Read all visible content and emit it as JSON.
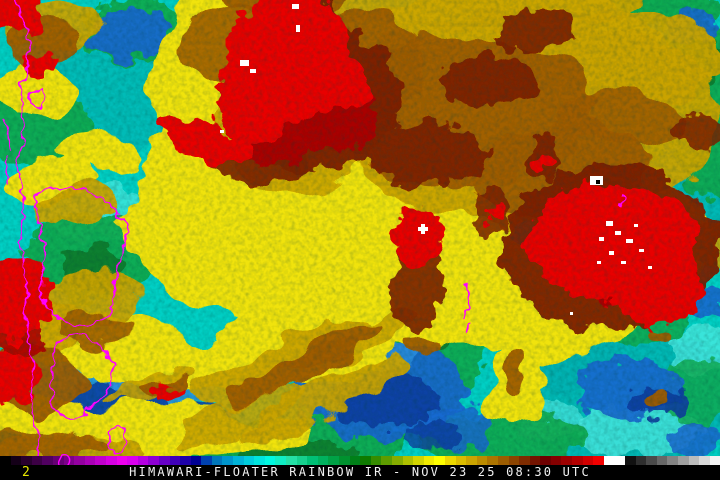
{
  "caption": {
    "channel": "2",
    "text": "HIMAWARI-FLOATER RAINBOW IR - NOV 23 25 08:30 UTC",
    "text_color": "#f2f2f2",
    "channel_color": "#e8e800",
    "background": "#000000"
  },
  "colorbar": {
    "colors": [
      "#000000",
      "#140018",
      "#28002e",
      "#3c0045",
      "#500060",
      "#660074",
      "#7c008a",
      "#9300a0",
      "#a900b6",
      "#c000cc",
      "#d600e2",
      "#ee00ee",
      "#d900ee",
      "#b500e2",
      "#8e00d4",
      "#6600c6",
      "#3f00b8",
      "#1d00a8",
      "#000094",
      "#0041b0",
      "#0077bb",
      "#0095cc",
      "#00b3d8",
      "#00cddd",
      "#00e4de",
      "#00f8e0",
      "#10eec4",
      "#24e0a6",
      "#16d08e",
      "#00c076",
      "#00b15e",
      "#00a246",
      "#00922f",
      "#008018",
      "#0e7a00",
      "#368c00",
      "#5e9c00",
      "#86ac00",
      "#aec000",
      "#d2d400",
      "#f0ea00",
      "#fefe00",
      "#ecd800",
      "#dbbc00",
      "#cba400",
      "#bc8c00",
      "#ac7400",
      "#9c5c00",
      "#8c4400",
      "#7e2c00",
      "#731400",
      "#6e0000",
      "#840000",
      "#9c0000",
      "#b40000",
      "#d20000",
      "#f20000",
      "#ffffff",
      "#ffffff",
      "#111111",
      "#2e2e2e",
      "#4a4a4a",
      "#676767",
      "#838383",
      "#9f9f9f",
      "#bcbcbc",
      "#d8d8d8",
      "#f4f4f4"
    ]
  },
  "imagery": {
    "type": "satellite-ir-rainbow",
    "overlay_color": "#ff00ff",
    "key_colors": {
      "warm_sea_cyan": "#00cfc4",
      "green": "#11a94d",
      "warm_blue": "#1a66cf",
      "yellow_canopy": "#f0e30c",
      "gold": "#c9a306",
      "brown": "#9e5c05",
      "dark_red": "#7c2004",
      "cold_red": "#e80000",
      "coldest_white": "#ffffff"
    }
  }
}
